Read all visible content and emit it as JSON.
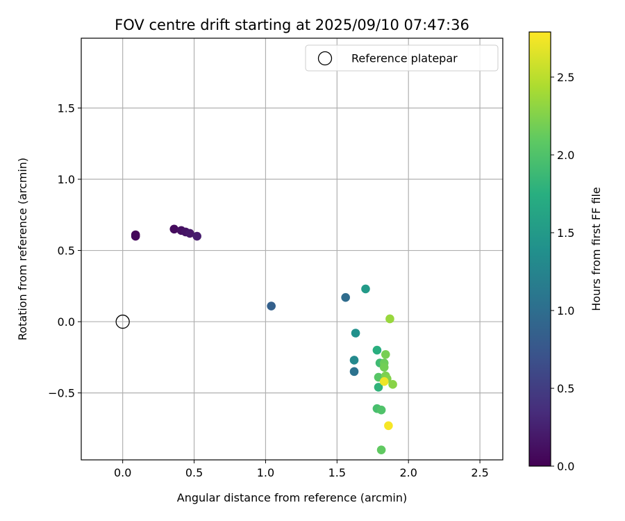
{
  "chart_data": {
    "type": "scatter",
    "title": "FOV centre drift starting at 2025/09/10 07:47:36",
    "xlabel": "Angular distance from reference (arcmin)",
    "ylabel": "Rotation from reference (arcmin)",
    "xlim": [
      -0.29,
      2.66
    ],
    "ylim": [
      -0.97,
      1.99
    ],
    "xticks": [
      0.0,
      0.5,
      1.0,
      1.5,
      2.0,
      2.5
    ],
    "xtick_labels": [
      "0.0",
      "0.5",
      "1.0",
      "1.5",
      "2.0",
      "2.5"
    ],
    "yticks": [
      -0.5,
      0.0,
      0.5,
      1.0,
      1.5
    ],
    "ytick_labels": [
      "−0.5",
      "0.0",
      "0.5",
      "1.0",
      "1.5"
    ],
    "grid": true,
    "legend": {
      "position": "top-right",
      "entries": [
        {
          "label": "Reference platepar",
          "marker": "open-circle"
        }
      ]
    },
    "reference_point": {
      "x": 0.0,
      "y": 0.0
    },
    "colorbar": {
      "label": "Hours from first FF file",
      "colormap": "viridis",
      "range": [
        0.0,
        2.79
      ],
      "ticks": [
        0.0,
        0.5,
        1.0,
        1.5,
        2.0,
        2.5
      ],
      "tick_labels": [
        "0.0",
        "0.5",
        "1.0",
        "1.5",
        "2.0",
        "2.5"
      ]
    },
    "points": [
      {
        "x": 0.09,
        "y": 0.61,
        "hours": 0.02
      },
      {
        "x": 0.09,
        "y": 0.6,
        "hours": 0.05
      },
      {
        "x": 0.36,
        "y": 0.65,
        "hours": 0.08
      },
      {
        "x": 0.41,
        "y": 0.64,
        "hours": 0.12
      },
      {
        "x": 0.44,
        "y": 0.63,
        "hours": 0.15
      },
      {
        "x": 0.47,
        "y": 0.62,
        "hours": 0.18
      },
      {
        "x": 0.52,
        "y": 0.6,
        "hours": 0.22
      },
      {
        "x": 1.04,
        "y": 0.11,
        "hours": 0.85
      },
      {
        "x": 1.56,
        "y": 0.17,
        "hours": 0.98
      },
      {
        "x": 1.62,
        "y": -0.35,
        "hours": 1.05
      },
      {
        "x": 1.62,
        "y": -0.27,
        "hours": 1.3
      },
      {
        "x": 1.63,
        "y": -0.08,
        "hours": 1.4
      },
      {
        "x": 1.7,
        "y": 0.23,
        "hours": 1.5
      },
      {
        "x": 1.78,
        "y": -0.2,
        "hours": 1.75
      },
      {
        "x": 1.79,
        "y": -0.46,
        "hours": 1.8
      },
      {
        "x": 1.8,
        "y": -0.29,
        "hours": 1.9
      },
      {
        "x": 1.78,
        "y": -0.61,
        "hours": 1.95
      },
      {
        "x": 1.81,
        "y": -0.62,
        "hours": 2.0
      },
      {
        "x": 1.79,
        "y": -0.39,
        "hours": 2.05
      },
      {
        "x": 1.81,
        "y": -0.9,
        "hours": 2.1
      },
      {
        "x": 1.83,
        "y": -0.29,
        "hours": 2.15
      },
      {
        "x": 1.83,
        "y": -0.32,
        "hours": 2.18
      },
      {
        "x": 1.84,
        "y": -0.23,
        "hours": 2.2
      },
      {
        "x": 1.84,
        "y": -0.38,
        "hours": 2.22
      },
      {
        "x": 1.85,
        "y": -0.4,
        "hours": 2.25
      },
      {
        "x": 1.89,
        "y": -0.44,
        "hours": 2.28
      },
      {
        "x": 1.87,
        "y": 0.02,
        "hours": 2.35
      },
      {
        "x": 1.83,
        "y": -0.42,
        "hours": 2.72
      },
      {
        "x": 1.86,
        "y": -0.73,
        "hours": 2.76
      }
    ]
  }
}
